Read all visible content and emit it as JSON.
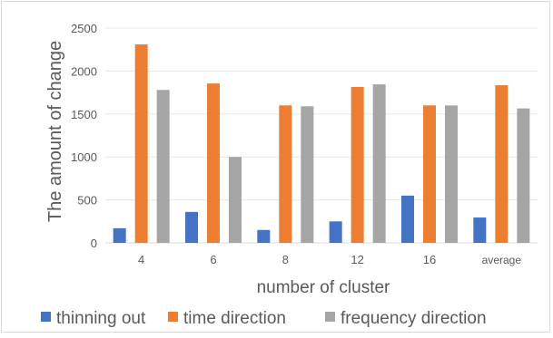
{
  "chart_data": {
    "type": "bar",
    "title": "",
    "xlabel": "number of cluster",
    "ylabel": "The amount of change",
    "categories": [
      "4",
      "6",
      "8",
      "12",
      "16",
      "average"
    ],
    "series": [
      {
        "name": "thinning out",
        "color": "#4472c4",
        "values": [
          170,
          360,
          150,
          250,
          550,
          295
        ]
      },
      {
        "name": "time direction",
        "color": "#ed7d31",
        "values": [
          2310,
          1855,
          1600,
          1815,
          1600,
          1835
        ]
      },
      {
        "name": "frequency direction",
        "color": "#a5a5a5",
        "values": [
          1780,
          1000,
          1590,
          1845,
          1600,
          1565
        ]
      }
    ],
    "ylim": [
      0,
      2500
    ],
    "yticks": [
      "0",
      "500",
      "1000",
      "1500",
      "2000",
      "2500"
    ],
    "grid": true,
    "legend_position": "bottom"
  }
}
